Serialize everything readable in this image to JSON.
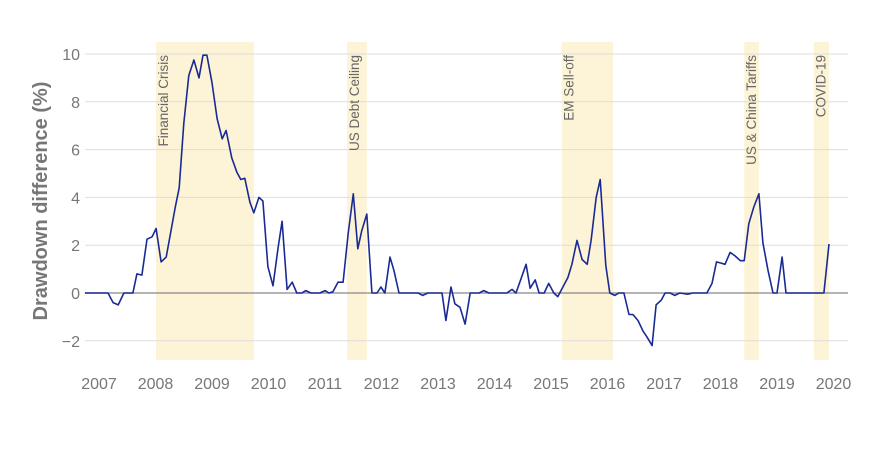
{
  "chart_data": {
    "type": "line",
    "title": "",
    "xlabel": "",
    "ylabel": "Drawdown difference (%)",
    "xlim": [
      2006.75,
      2020.4
    ],
    "ylim": [
      -2.8,
      10.5
    ],
    "grid": true,
    "xticks": [
      2007,
      2008,
      2009,
      2010,
      2011,
      2012,
      2013,
      2014,
      2015,
      2016,
      2017,
      2018,
      2019,
      2020
    ],
    "xtick_labels": [
      "2007",
      "2008",
      "2009",
      "2010",
      "2011",
      "2012",
      "2013",
      "2014",
      "2015",
      "2016",
      "2017",
      "2018",
      "2019",
      "2020"
    ],
    "yticks": [
      -2,
      0,
      2,
      4,
      6,
      8,
      10
    ],
    "ytick_labels": [
      "−2",
      "0",
      "2",
      "4",
      "6",
      "8",
      "10"
    ],
    "colors": {
      "line": "#1a2a94",
      "band": "#fdf3d6",
      "grid": "#dddddd",
      "zero": "#888888"
    },
    "bands": [
      {
        "label": "Financial Crisis",
        "start": 2008.01,
        "end": 2009.74
      },
      {
        "label": "US Debt Ceiling",
        "start": 2011.39,
        "end": 2011.74
      },
      {
        "label": "EM Sell-off",
        "start": 2015.19,
        "end": 2016.1
      },
      {
        "label": "US & China Tariffs",
        "start": 2018.42,
        "end": 2018.68
      },
      {
        "label": "COVID-19",
        "start": 2019.65,
        "end": 2019.92
      }
    ],
    "series": [
      {
        "points": [
          [
            2006.75,
            0
          ],
          [
            2007.16,
            0
          ],
          [
            2007.25,
            -0.4
          ],
          [
            2007.34,
            -0.5
          ],
          [
            2007.44,
            0
          ],
          [
            2007.6,
            0
          ],
          [
            2007.67,
            0.8
          ],
          [
            2007.76,
            0.75
          ],
          [
            2007.85,
            2.25
          ],
          [
            2007.94,
            2.35
          ],
          [
            2008.01,
            2.7
          ],
          [
            2008.1,
            1.3
          ],
          [
            2008.19,
            1.5
          ],
          [
            2008.35,
            3.6
          ],
          [
            2008.42,
            4.4
          ],
          [
            2008.5,
            7.1
          ],
          [
            2008.59,
            9.1
          ],
          [
            2008.68,
            9.75
          ],
          [
            2008.77,
            9.0
          ],
          [
            2008.84,
            9.95
          ],
          [
            2008.91,
            9.95
          ],
          [
            2009.0,
            8.8
          ],
          [
            2009.09,
            7.3
          ],
          [
            2009.18,
            6.45
          ],
          [
            2009.25,
            6.8
          ],
          [
            2009.35,
            5.65
          ],
          [
            2009.44,
            5.05
          ],
          [
            2009.51,
            4.75
          ],
          [
            2009.58,
            4.8
          ],
          [
            2009.67,
            3.8
          ],
          [
            2009.74,
            3.35
          ],
          [
            2009.83,
            4.0
          ],
          [
            2009.9,
            3.85
          ],
          [
            2009.99,
            1.1
          ],
          [
            2010.08,
            0.3
          ],
          [
            2010.17,
            1.9
          ],
          [
            2010.24,
            3.0
          ],
          [
            2010.33,
            0.15
          ],
          [
            2010.42,
            0.45
          ],
          [
            2010.5,
            0
          ],
          [
            2010.59,
            0
          ],
          [
            2010.66,
            0.1
          ],
          [
            2010.75,
            0
          ],
          [
            2010.91,
            0
          ],
          [
            2011.0,
            0.1
          ],
          [
            2011.07,
            0
          ],
          [
            2011.14,
            0.05
          ],
          [
            2011.23,
            0.45
          ],
          [
            2011.32,
            0.45
          ],
          [
            2011.41,
            2.5
          ],
          [
            2011.5,
            4.15
          ],
          [
            2011.58,
            1.85
          ],
          [
            2011.65,
            2.6
          ],
          [
            2011.74,
            3.3
          ],
          [
            2011.83,
            0
          ],
          [
            2011.92,
            0
          ],
          [
            2011.99,
            0.25
          ],
          [
            2012.06,
            0
          ],
          [
            2012.15,
            1.5
          ],
          [
            2012.22,
            0.95
          ],
          [
            2012.31,
            0
          ],
          [
            2012.65,
            0
          ],
          [
            2012.73,
            -0.1
          ],
          [
            2012.82,
            0
          ],
          [
            2013.07,
            0
          ],
          [
            2013.14,
            -1.15
          ],
          [
            2013.23,
            0.25
          ],
          [
            2013.3,
            -0.45
          ],
          [
            2013.39,
            -0.6
          ],
          [
            2013.48,
            -1.3
          ],
          [
            2013.57,
            0
          ],
          [
            2013.73,
            0
          ],
          [
            2013.81,
            0.1
          ],
          [
            2013.9,
            0
          ],
          [
            2014.22,
            0
          ],
          [
            2014.31,
            0.15
          ],
          [
            2014.38,
            0
          ],
          [
            2014.56,
            1.2
          ],
          [
            2014.63,
            0.2
          ],
          [
            2014.72,
            0.55
          ],
          [
            2014.79,
            0
          ],
          [
            2014.88,
            0
          ],
          [
            2014.96,
            0.4
          ],
          [
            2015.05,
            0
          ],
          [
            2015.12,
            -0.15
          ],
          [
            2015.21,
            0.25
          ],
          [
            2015.3,
            0.65
          ],
          [
            2015.37,
            1.2
          ],
          [
            2015.46,
            2.2
          ],
          [
            2015.55,
            1.4
          ],
          [
            2015.64,
            1.2
          ],
          [
            2015.71,
            2.2
          ],
          [
            2015.8,
            4.0
          ],
          [
            2015.87,
            4.75
          ],
          [
            2015.97,
            1.15
          ],
          [
            2016.04,
            0
          ],
          [
            2016.13,
            -0.1
          ],
          [
            2016.2,
            0
          ],
          [
            2016.29,
            0
          ],
          [
            2016.38,
            -0.9
          ],
          [
            2016.45,
            -0.9
          ],
          [
            2016.54,
            -1.15
          ],
          [
            2016.63,
            -1.6
          ],
          [
            2016.7,
            -1.85
          ],
          [
            2016.79,
            -2.2
          ],
          [
            2016.86,
            -0.5
          ],
          [
            2016.95,
            -0.3
          ],
          [
            2017.02,
            0
          ],
          [
            2017.11,
            0
          ],
          [
            2017.19,
            -0.1
          ],
          [
            2017.28,
            0
          ],
          [
            2017.42,
            -0.05
          ],
          [
            2017.51,
            0
          ],
          [
            2017.76,
            0
          ],
          [
            2017.85,
            0.4
          ],
          [
            2017.93,
            1.3
          ],
          [
            2018.01,
            1.25
          ],
          [
            2018.08,
            1.2
          ],
          [
            2018.17,
            1.7
          ],
          [
            2018.26,
            1.55
          ],
          [
            2018.35,
            1.35
          ],
          [
            2018.42,
            1.35
          ],
          [
            2018.5,
            2.9
          ],
          [
            2018.59,
            3.6
          ],
          [
            2018.68,
            4.15
          ],
          [
            2018.75,
            2.1
          ],
          [
            2018.84,
            0.95
          ],
          [
            2018.93,
            0
          ],
          [
            2019.0,
            0
          ],
          [
            2019.09,
            1.5
          ],
          [
            2019.16,
            0
          ],
          [
            2019.83,
            0
          ],
          [
            2019.92,
            2.05
          ]
        ]
      }
    ]
  }
}
